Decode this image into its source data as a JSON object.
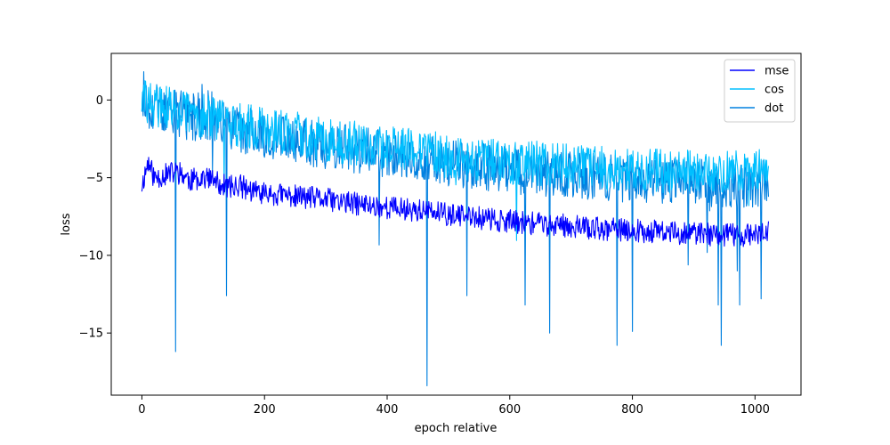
{
  "chart_data": {
    "type": "line",
    "title": "",
    "xlabel": "epoch relative",
    "ylabel": "loss",
    "xlim": [
      -50,
      1075
    ],
    "ylim": [
      -19,
      3
    ],
    "xticks": [
      0,
      200,
      400,
      600,
      800,
      1000
    ],
    "yticks": [
      0,
      -5,
      -10,
      -15
    ],
    "grid": false,
    "legend_position": "top-right",
    "series": [
      {
        "name": "mse",
        "color": "#0000ff",
        "points": [
          [
            0,
            -5.5
          ],
          [
            10,
            -4.0
          ],
          [
            20,
            -5.0
          ],
          [
            40,
            -4.8
          ],
          [
            60,
            -4.6
          ],
          [
            80,
            -5.2
          ],
          [
            100,
            -4.9
          ],
          [
            120,
            -5.3
          ],
          [
            140,
            -5.6
          ],
          [
            160,
            -5.5
          ],
          [
            180,
            -5.9
          ],
          [
            200,
            -6.0
          ],
          [
            250,
            -6.2
          ],
          [
            300,
            -6.4
          ],
          [
            350,
            -6.7
          ],
          [
            400,
            -6.9
          ],
          [
            450,
            -7.1
          ],
          [
            500,
            -7.4
          ],
          [
            550,
            -7.6
          ],
          [
            600,
            -7.8
          ],
          [
            650,
            -8.0
          ],
          [
            700,
            -8.1
          ],
          [
            750,
            -8.3
          ],
          [
            800,
            -8.4
          ],
          [
            850,
            -8.5
          ],
          [
            900,
            -8.6
          ],
          [
            950,
            -8.7
          ],
          [
            1000,
            -8.7
          ],
          [
            1020,
            -8.5
          ]
        ]
      },
      {
        "name": "cos",
        "color": "#00bfff",
        "points": [
          [
            0,
            0.0
          ],
          [
            20,
            -0.3
          ],
          [
            50,
            -0.6
          ],
          [
            100,
            -1.0
          ],
          [
            150,
            -1.5
          ],
          [
            200,
            -1.9
          ],
          [
            250,
            -2.2
          ],
          [
            300,
            -2.5
          ],
          [
            350,
            -2.8
          ],
          [
            400,
            -3.1
          ],
          [
            450,
            -3.3
          ],
          [
            500,
            -3.6
          ],
          [
            550,
            -3.8
          ],
          [
            600,
            -4.0
          ],
          [
            650,
            -4.1
          ],
          [
            700,
            -4.3
          ],
          [
            750,
            -4.4
          ],
          [
            800,
            -4.5
          ],
          [
            850,
            -4.6
          ],
          [
            900,
            -4.6
          ],
          [
            950,
            -4.7
          ],
          [
            1000,
            -4.7
          ],
          [
            1020,
            -4.5
          ]
        ]
      },
      {
        "name": "dot",
        "color": "#0080e0",
        "points": [
          [
            0,
            0.0
          ],
          [
            20,
            -0.5
          ],
          [
            50,
            -0.8
          ],
          [
            100,
            -1.3
          ],
          [
            150,
            -1.8
          ],
          [
            200,
            -2.2
          ],
          [
            250,
            -2.6
          ],
          [
            300,
            -2.9
          ],
          [
            350,
            -3.2
          ],
          [
            400,
            -3.5
          ],
          [
            450,
            -3.8
          ],
          [
            500,
            -4.0
          ],
          [
            550,
            -4.3
          ],
          [
            600,
            -4.5
          ],
          [
            650,
            -4.7
          ],
          [
            700,
            -4.8
          ],
          [
            750,
            -5.0
          ],
          [
            800,
            -5.1
          ],
          [
            850,
            -5.2
          ],
          [
            900,
            -5.3
          ],
          [
            950,
            -5.4
          ],
          [
            1000,
            -5.4
          ],
          [
            1020,
            -5.2
          ]
        ]
      }
    ],
    "annotations": "Mean trend of noisy curves with about 1024 points per series; notable dot dips near x=55 (-16.2), x=138 (-12.6), x=465 (-18.4), x=775 (-15.8), x=945 (-15.8)"
  }
}
